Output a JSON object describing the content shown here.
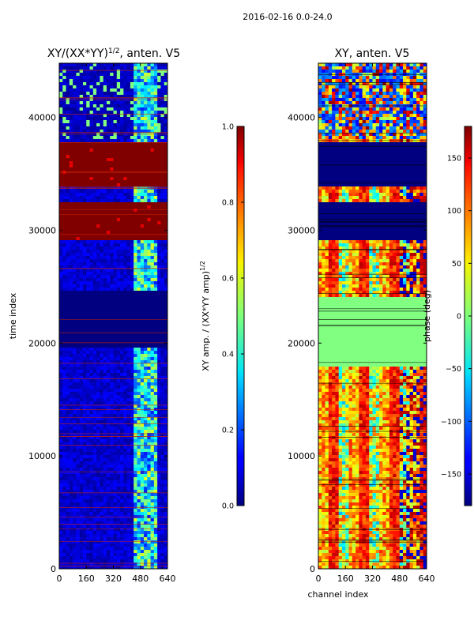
{
  "suptitle": "2016-02-16 0.0-24.0",
  "chart_data": [
    {
      "type": "heatmap",
      "title": "XY/(XX*YY)^{1/2}, anten. V5",
      "title_main": "XY/(XX*YY)",
      "title_exp": "1/2",
      "title_tail": ", anten. V5",
      "xlabel": "",
      "ylabel": "time index",
      "xlim": [
        0,
        640
      ],
      "ylim": [
        0,
        44800
      ],
      "x_ticks": [
        0,
        160,
        320,
        480,
        640
      ],
      "y_ticks": [
        0,
        10000,
        20000,
        30000,
        40000
      ],
      "colorbar": {
        "label": "XY amp. / (XX*YY amp)^{1/2}",
        "label_main": "XY amp. / (XX*YY amp)",
        "label_exp": "1/2",
        "range": [
          0.0,
          1.0
        ],
        "ticks": [
          0.0,
          0.2,
          0.4,
          0.6,
          0.8,
          1.0
        ],
        "tick_labels": [
          "0.0",
          "0.2",
          "0.4",
          "0.6",
          "0.8",
          "1.0"
        ],
        "colormap": "jet"
      },
      "approx_regions": [
        {
          "time_from": 29000,
          "time_to": 32500,
          "value": 1.0
        },
        {
          "time_from": 34000,
          "time_to": 37700,
          "value": 1.0
        },
        {
          "time_from": 19500,
          "time_to": 24500,
          "value": 0.0
        },
        {
          "channels_from": 440,
          "channels_to": 580,
          "value": 0.45
        }
      ]
    },
    {
      "type": "heatmap",
      "title": "XY, anten. V5",
      "xlabel": "channel index",
      "ylabel": "",
      "xlim": [
        0,
        640
      ],
      "ylim": [
        0,
        44800
      ],
      "x_ticks": [
        0,
        160,
        320,
        480,
        640
      ],
      "y_ticks": [
        0,
        10000,
        20000,
        30000,
        40000
      ],
      "colorbar": {
        "label": "phase (deg)",
        "range": [
          -180,
          180
        ],
        "ticks": [
          -150,
          -100,
          -50,
          0,
          50,
          100,
          150
        ],
        "tick_labels": [
          "−150",
          "−100",
          "−50",
          "0",
          "50",
          "100",
          "150"
        ],
        "colormap": "jet"
      },
      "approx_regions": [
        {
          "time_from": 29000,
          "time_to": 32500,
          "value": -180
        },
        {
          "time_from": 34000,
          "time_to": 37700,
          "value": -180
        },
        {
          "time_from": 18000,
          "time_to": 24000,
          "value": 0
        }
      ]
    }
  ]
}
